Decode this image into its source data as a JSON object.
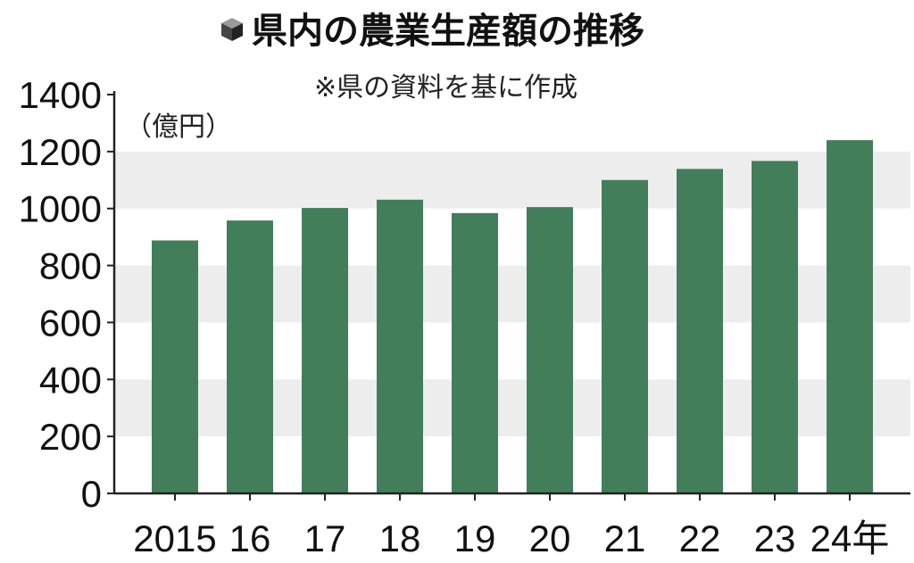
{
  "chart_data": {
    "type": "bar",
    "title": "県内の農業生産額の推移",
    "note": "※県の資料を基に作成",
    "unit": "（億円）",
    "categories": [
      "2015",
      "16",
      "17",
      "18",
      "19",
      "20",
      "21",
      "22",
      "23",
      "24年"
    ],
    "values": [
      888,
      958,
      1002,
      1031,
      984,
      1005,
      1100,
      1139,
      1167,
      1240
    ],
    "ylim": [
      0,
      1400
    ],
    "yticks": [
      "0",
      "200",
      "400",
      "600",
      "800",
      "1000",
      "1200",
      "1400"
    ],
    "grid": "alternating horizontal bands",
    "colors": {
      "bar": "#427e5a",
      "band": "#ededed",
      "axis": "#222222"
    }
  }
}
